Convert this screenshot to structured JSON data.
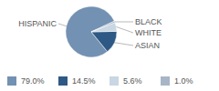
{
  "chart_data": {
    "type": "pie",
    "categories": [
      "HISPANIC",
      "ASIAN",
      "WHITE",
      "BLACK"
    ],
    "values": [
      79.0,
      14.5,
      5.6,
      1.0
    ],
    "value_labels": [
      "79.0%",
      "14.5%",
      "5.6%",
      "1.0%"
    ],
    "colors": [
      "#7391b2",
      "#2e5985",
      "#c9d6e3",
      "#a7b5c6"
    ],
    "legend": "bottom"
  }
}
